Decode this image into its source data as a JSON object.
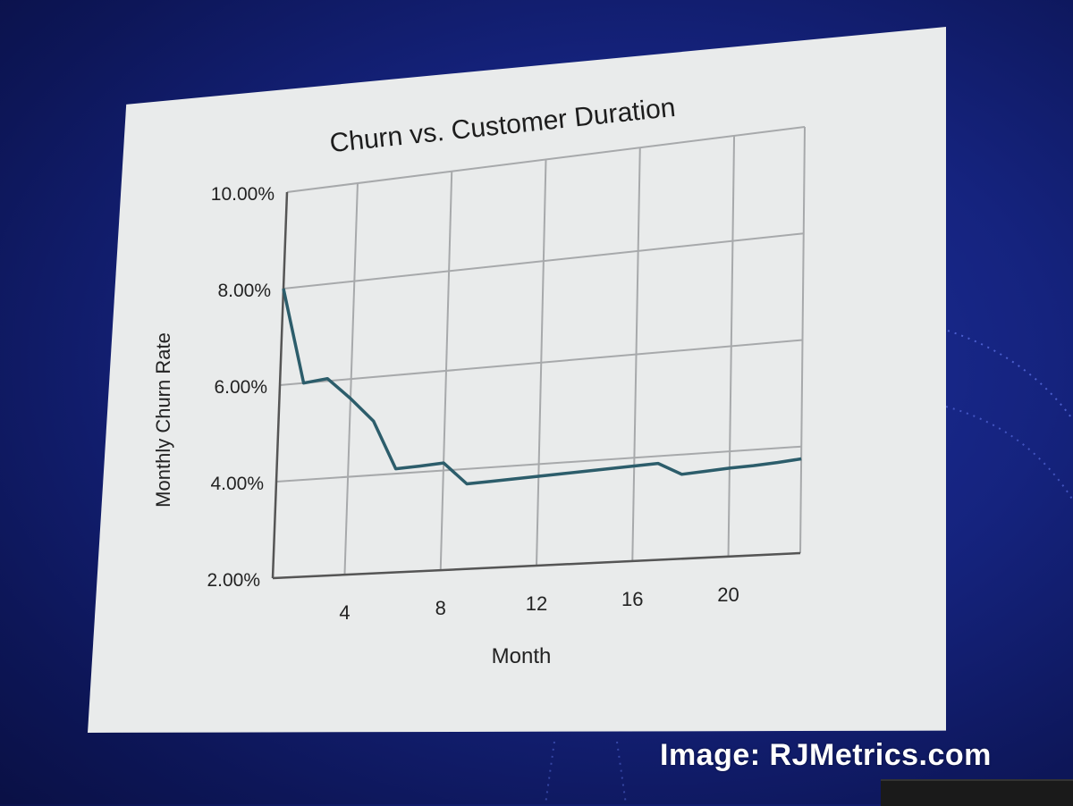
{
  "credit": "Image: RJMetrics.com",
  "colors": {
    "background": "#15237e",
    "slide": "#e9ebeb",
    "line": "#2c5d6b",
    "grid": "#a7a9ab"
  },
  "chart_data": {
    "type": "line",
    "title": "Churn vs. Customer Duration",
    "xlabel": "Month",
    "ylabel": "Monthly Churn Rate",
    "xlim": [
      1,
      23
    ],
    "ylim": [
      2,
      10
    ],
    "x_ticks": [
      4,
      8,
      12,
      16,
      20
    ],
    "x_tick_labels": [
      "4",
      "8",
      "12",
      "16",
      "20"
    ],
    "y_ticks": [
      2,
      4,
      6,
      8,
      10
    ],
    "y_tick_labels": [
      "2.00%",
      "4.00%",
      "6.00%",
      "8.00%",
      "10.00%"
    ],
    "grid": true,
    "legend": "none",
    "series": [
      {
        "x": [
          1,
          2,
          3,
          4,
          5,
          6,
          7,
          8,
          9,
          10,
          11,
          12,
          13,
          14,
          15,
          16,
          17,
          18,
          19,
          20,
          21,
          22,
          23
        ],
        "y": [
          8.0,
          6.0,
          6.05,
          5.6,
          5.1,
          4.1,
          4.12,
          4.15,
          3.7,
          3.72,
          3.74,
          3.76,
          3.78,
          3.8,
          3.82,
          3.84,
          3.86,
          3.62,
          3.65,
          3.68,
          3.7,
          3.73,
          3.77
        ]
      }
    ]
  }
}
